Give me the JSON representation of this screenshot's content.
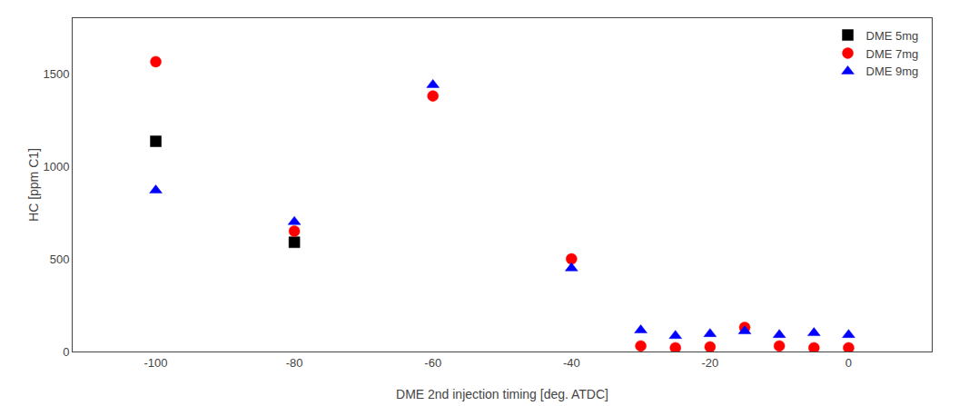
{
  "chart_data": {
    "type": "scatter",
    "xlabel": "DME 2nd injection timing [deg. ATDC]",
    "ylabel": "HC [ppm C1]",
    "series": [
      {
        "name": "DME 5mg",
        "color": "black",
        "marker": "square",
        "x": [
          -100,
          -80
        ],
        "values": [
          1135,
          590
        ]
      },
      {
        "name": "DME 7mg",
        "color": "red",
        "marker": "circle",
        "x": [
          -100,
          -80,
          -60,
          -40,
          -30,
          -25,
          -20,
          -15,
          -10,
          -5,
          0
        ],
        "values": [
          1565,
          650,
          1380,
          500,
          30,
          20,
          25,
          130,
          30,
          20,
          20
        ]
      },
      {
        "name": "DME 9mg",
        "color": "blue",
        "marker": "triangle-up",
        "x": [
          -100,
          -80,
          -60,
          -40,
          -30,
          -25,
          -20,
          -15,
          -10,
          -5,
          0
        ],
        "values": [
          870,
          700,
          1440,
          450,
          115,
          85,
          95,
          110,
          90,
          100,
          90
        ]
      }
    ],
    "xlim": [
      -112,
      12
    ],
    "ylim": [
      0,
      1800
    ],
    "xticks": [
      -100,
      -80,
      -60,
      -40,
      -20,
      0
    ],
    "yticks": [
      0,
      500,
      1000,
      1500
    ],
    "legend": "upper right",
    "grid": false
  }
}
